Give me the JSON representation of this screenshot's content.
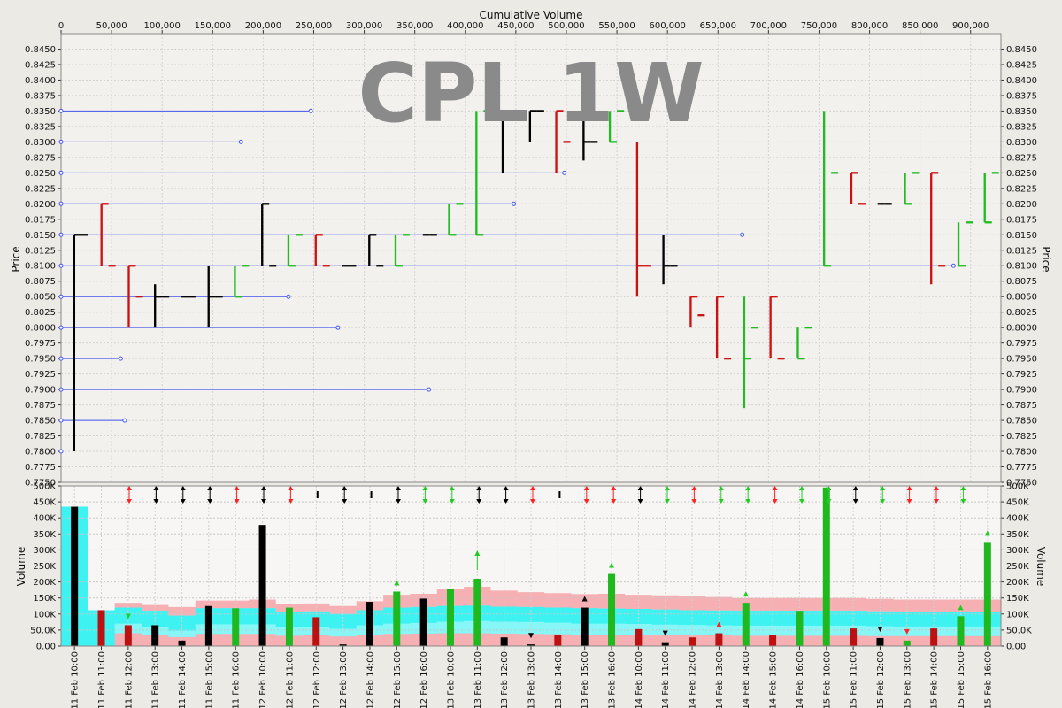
{
  "chart_data": [
    {
      "type": "bar",
      "subtype": "equivolume",
      "watermark": "CPL 1W",
      "xlabel": "Cumulative Volume",
      "ylabel": "Price",
      "xlim": [
        0,
        930000
      ],
      "ylim": [
        0.775,
        0.8475
      ],
      "x_ticks": [
        0,
        50000,
        100000,
        150000,
        200000,
        250000,
        300000,
        350000,
        400000,
        450000,
        500000,
        550000,
        600000,
        650000,
        700000,
        750000,
        800000,
        850000,
        900000
      ],
      "x_tick_labels": [
        "0",
        "50,000",
        "100,000",
        "150,000",
        "200,000",
        "250,000",
        "300,000",
        "350,000",
        "400,000",
        "450,000",
        "500,000",
        "550,000",
        "600,000",
        "650,000",
        "700,000",
        "750,000",
        "800,000",
        "850,000",
        "900,000"
      ],
      "y_ticks": [
        0.775,
        0.7775,
        0.78,
        0.7825,
        0.785,
        0.7875,
        0.79,
        0.7925,
        0.795,
        0.7975,
        0.8,
        0.8025,
        0.805,
        0.8075,
        0.81,
        0.8125,
        0.815,
        0.8175,
        0.82,
        0.8225,
        0.825,
        0.8275,
        0.83,
        0.8325,
        0.835,
        0.8375,
        0.84,
        0.8425,
        0.845
      ],
      "y_tick_labels": [
        "0.7750",
        "0.7775",
        "0.7800",
        "0.7825",
        "0.7850",
        "0.7875",
        "0.7900",
        "0.7925",
        "0.7950",
        "0.7975",
        "0.8000",
        "0.8025",
        "0.8050",
        "0.8075",
        "0.8100",
        "0.8125",
        "0.8150",
        "0.8175",
        "0.8200",
        "0.8225",
        "0.8250",
        "0.8275",
        "0.8300",
        "0.8325",
        "0.8350",
        "0.8375",
        "0.8400",
        "0.8425",
        "0.8450"
      ],
      "grid": true,
      "colors": {
        "up": "#22bb22",
        "down": "#cc1111",
        "neutral": "#000000",
        "volume_profile": "#4455ee"
      },
      "volume_at_price": [
        {
          "price": 0.835,
          "volume": 247000
        },
        {
          "price": 0.83,
          "volume": 178000
        },
        {
          "price": 0.825,
          "volume": 498000
        },
        {
          "price": 0.82,
          "volume": 448000
        },
        {
          "price": 0.815,
          "volume": 674000
        },
        {
          "price": 0.81,
          "volume": 883000
        },
        {
          "price": 0.805,
          "volume": 225000
        },
        {
          "price": 0.8,
          "volume": 274000
        },
        {
          "price": 0.795,
          "volume": 59000
        },
        {
          "price": 0.79,
          "volume": 364000
        },
        {
          "price": 0.785,
          "volume": 63000
        },
        {
          "price": 0.78,
          "volume": 0
        }
      ],
      "bars": [
        {
          "x0": 13000,
          "x1": 27000,
          "high": 0.815,
          "low": 0.78,
          "open": 0.815,
          "close": 0.815,
          "dir": "neutral"
        },
        {
          "x0": 40000,
          "x1": 54000,
          "high": 0.82,
          "low": 0.81,
          "open": 0.82,
          "close": 0.81,
          "dir": "down"
        },
        {
          "x0": 67000,
          "x1": 81000,
          "high": 0.81,
          "low": 0.8,
          "open": 0.81,
          "close": 0.805,
          "dir": "down"
        },
        {
          "x0": 93000,
          "x1": 107000,
          "high": 0.807,
          "low": 0.8,
          "open": 0.805,
          "close": 0.805,
          "dir": "neutral"
        },
        {
          "x0": 119000,
          "x1": 133000,
          "high": 0.805,
          "low": 0.805,
          "open": 0.805,
          "close": 0.805,
          "dir": "neutral"
        },
        {
          "x0": 146000,
          "x1": 160000,
          "high": 0.81,
          "low": 0.8,
          "open": 0.805,
          "close": 0.805,
          "dir": "neutral"
        },
        {
          "x0": 172000,
          "x1": 186000,
          "high": 0.81,
          "low": 0.805,
          "open": 0.805,
          "close": 0.81,
          "dir": "up"
        },
        {
          "x0": 199000,
          "x1": 213000,
          "high": 0.82,
          "low": 0.81,
          "open": 0.82,
          "close": 0.81,
          "dir": "neutral"
        },
        {
          "x0": 225000,
          "x1": 239000,
          "high": 0.815,
          "low": 0.81,
          "open": 0.81,
          "close": 0.815,
          "dir": "up"
        },
        {
          "x0": 252000,
          "x1": 266000,
          "high": 0.815,
          "low": 0.81,
          "open": 0.815,
          "close": 0.81,
          "dir": "down"
        },
        {
          "x0": 278000,
          "x1": 292000,
          "high": 0.81,
          "low": 0.81,
          "open": 0.81,
          "close": 0.81,
          "dir": "neutral"
        },
        {
          "x0": 305000,
          "x1": 319000,
          "high": 0.815,
          "low": 0.81,
          "open": 0.815,
          "close": 0.81,
          "dir": "neutral"
        },
        {
          "x0": 331000,
          "x1": 345000,
          "high": 0.815,
          "low": 0.81,
          "open": 0.81,
          "close": 0.815,
          "dir": "up"
        },
        {
          "x0": 358000,
          "x1": 372000,
          "high": 0.815,
          "low": 0.815,
          "open": 0.815,
          "close": 0.815,
          "dir": "neutral"
        },
        {
          "x0": 384000,
          "x1": 398000,
          "high": 0.82,
          "low": 0.815,
          "open": 0.815,
          "close": 0.82,
          "dir": "up"
        },
        {
          "x0": 411000,
          "x1": 425000,
          "high": 0.835,
          "low": 0.815,
          "open": 0.815,
          "close": 0.835,
          "dir": "up"
        },
        {
          "x0": 437000,
          "x1": 451000,
          "high": 0.835,
          "low": 0.825,
          "open": 0.835,
          "close": 0.835,
          "dir": "neutral"
        },
        {
          "x0": 464000,
          "x1": 478000,
          "high": 0.835,
          "low": 0.83,
          "open": 0.835,
          "close": 0.835,
          "dir": "neutral"
        },
        {
          "x0": 490000,
          "x1": 504000,
          "high": 0.835,
          "low": 0.825,
          "open": 0.835,
          "close": 0.83,
          "dir": "down"
        },
        {
          "x0": 517000,
          "x1": 531000,
          "high": 0.835,
          "low": 0.827,
          "open": 0.83,
          "close": 0.83,
          "dir": "neutral"
        },
        {
          "x0": 543000,
          "x1": 557000,
          "high": 0.835,
          "low": 0.83,
          "open": 0.83,
          "close": 0.835,
          "dir": "up"
        },
        {
          "x0": 570000,
          "x1": 584000,
          "high": 0.83,
          "low": 0.805,
          "open": 0.81,
          "close": 0.81,
          "dir": "down"
        },
        {
          "x0": 596000,
          "x1": 610000,
          "high": 0.815,
          "low": 0.807,
          "open": 0.81,
          "close": 0.81,
          "dir": "neutral"
        },
        {
          "x0": 623000,
          "x1": 637000,
          "high": 0.805,
          "low": 0.8,
          "open": 0.805,
          "close": 0.802,
          "dir": "down"
        },
        {
          "x0": 649000,
          "x1": 663000,
          "high": 0.805,
          "low": 0.795,
          "open": 0.805,
          "close": 0.795,
          "dir": "down"
        },
        {
          "x0": 676000,
          "x1": 690000,
          "high": 0.805,
          "low": 0.787,
          "open": 0.795,
          "close": 0.8,
          "dir": "up"
        },
        {
          "x0": 702000,
          "x1": 716000,
          "high": 0.805,
          "low": 0.795,
          "open": 0.805,
          "close": 0.795,
          "dir": "down"
        },
        {
          "x0": 729000,
          "x1": 743000,
          "high": 0.8,
          "low": 0.795,
          "open": 0.795,
          "close": 0.8,
          "dir": "up"
        },
        {
          "x0": 755000,
          "x1": 769000,
          "high": 0.835,
          "low": 0.81,
          "open": 0.81,
          "close": 0.825,
          "dir": "up"
        },
        {
          "x0": 782000,
          "x1": 796000,
          "high": 0.825,
          "low": 0.82,
          "open": 0.825,
          "close": 0.82,
          "dir": "down"
        },
        {
          "x0": 808000,
          "x1": 822000,
          "high": 0.82,
          "low": 0.82,
          "open": 0.82,
          "close": 0.82,
          "dir": "neutral"
        },
        {
          "x0": 835000,
          "x1": 849000,
          "high": 0.825,
          "low": 0.82,
          "open": 0.82,
          "close": 0.825,
          "dir": "up"
        },
        {
          "x0": 861000,
          "x1": 875000,
          "high": 0.825,
          "low": 0.807,
          "open": 0.825,
          "close": 0.81,
          "dir": "down"
        },
        {
          "x0": 888000,
          "x1": 902000,
          "high": 0.817,
          "low": 0.81,
          "open": 0.81,
          "close": 0.817,
          "dir": "up"
        },
        {
          "x0": 914000,
          "x1": 928000,
          "high": 0.825,
          "low": 0.817,
          "open": 0.817,
          "close": 0.825,
          "dir": "up"
        }
      ]
    },
    {
      "type": "bar",
      "subtype": "volume",
      "ylabel": "Volume",
      "ylim": [
        0,
        500000
      ],
      "y_ticks": [
        0,
        50000,
        100000,
        150000,
        200000,
        250000,
        300000,
        350000,
        400000,
        450000,
        500000
      ],
      "y_tick_labels": [
        "0.00",
        "50.0K",
        "100K",
        "150K",
        "200K",
        "250K",
        "300K",
        "350K",
        "400K",
        "450K",
        "500K"
      ],
      "categories": [
        "11 Feb 10:00",
        "11 Feb 11:00",
        "11 Feb 12:00",
        "11 Feb 13:00",
        "11 Feb 14:00",
        "11 Feb 15:00",
        "11 Feb 16:00",
        "12 Feb 10:00",
        "12 Feb 11:00",
        "12 Feb 12:00",
        "12 Feb 13:00",
        "12 Feb 14:00",
        "12 Feb 15:00",
        "12 Feb 16:00",
        "13 Feb 10:00",
        "13 Feb 11:00",
        "13 Feb 12:00",
        "13 Feb 13:00",
        "13 Feb 14:00",
        "13 Feb 15:00",
        "13 Feb 16:00",
        "14 Feb 10:00",
        "14 Feb 11:00",
        "14 Feb 12:00",
        "14 Feb 13:00",
        "14 Feb 14:00",
        "14 Feb 15:00",
        "14 Feb 16:00",
        "15 Feb 10:00",
        "15 Feb 11:00",
        "15 Feb 12:00",
        "15 Feb 13:00",
        "15 Feb 14:00",
        "15 Feb 15:00",
        "15 Feb 16:00"
      ],
      "values": [
        435000,
        112000,
        65000,
        65000,
        17000,
        125000,
        118000,
        378000,
        120000,
        90000,
        5000,
        138000,
        170000,
        148000,
        178000,
        210000,
        27000,
        5000,
        35000,
        120000,
        225000,
        53000,
        12000,
        27000,
        40000,
        135000,
        35000,
        110000,
        495000,
        55000,
        25000,
        17000,
        55000,
        93000,
        325000
      ],
      "dir": [
        "neutral",
        "down",
        "down",
        "neutral",
        "neutral",
        "neutral",
        "up",
        "neutral",
        "up",
        "down",
        "neutral",
        "neutral",
        "up",
        "neutral",
        "up",
        "up",
        "neutral",
        "neutral",
        "down",
        "neutral",
        "up",
        "down",
        "neutral",
        "down",
        "down",
        "up",
        "down",
        "up",
        "up",
        "down",
        "neutral",
        "up",
        "down",
        "up",
        "up"
      ],
      "volume_band": {
        "upper": [
          435000,
          112000,
          135000,
          128000,
          122000,
          142000,
          142000,
          145000,
          130000,
          133000,
          125000,
          140000,
          160000,
          163000,
          178000,
          185000,
          173000,
          168000,
          165000,
          162000,
          163000,
          160000,
          158000,
          155000,
          153000,
          150000,
          150000,
          150000,
          150000,
          150000,
          147000,
          145000,
          145000,
          145000,
          145000
        ],
        "mid_high": [
          435000,
          112000,
          120000,
          110000,
          95000,
          118000,
          118000,
          118000,
          105000,
          108000,
          100000,
          112000,
          120000,
          122000,
          125000,
          126000,
          123000,
          122000,
          120000,
          118000,
          117000,
          116000,
          114000,
          112000,
          111000,
          110000,
          110000,
          110000,
          110000,
          110000,
          108000,
          107000,
          107000,
          107000,
          107000
        ],
        "mid_low": [
          0,
          0,
          70000,
          60000,
          48000,
          68000,
          68000,
          68000,
          58000,
          60000,
          54000,
          65000,
          70000,
          72000,
          76000,
          78000,
          76000,
          75000,
          73000,
          70000,
          70000,
          69000,
          67000,
          66000,
          65000,
          64000,
          64000,
          64000,
          64000,
          64000,
          62000,
          61000,
          61000,
          61000,
          61000
        ],
        "lower": [
          0,
          0,
          40000,
          35000,
          28000,
          38000,
          38000,
          38000,
          32000,
          34000,
          30000,
          36000,
          38000,
          39000,
          40000,
          40000,
          39000,
          38000,
          37000,
          36000,
          36000,
          35000,
          34000,
          33000,
          33000,
          32000,
          32000,
          32000,
          32000,
          32000,
          31000,
          31000,
          31000,
          31000,
          31000
        ]
      },
      "band_colors": {
        "outer": "#f6b0b3",
        "inner": "#3ff2f2"
      },
      "change_markers": [
        {
          "symbol": "up-down",
          "color": "#ff2222"
        },
        {
          "symbol": "up-down",
          "color": "#000000"
        },
        {
          "symbol": "up-down",
          "color": "#000000"
        },
        {
          "symbol": "up-down",
          "color": "#000000"
        },
        {
          "symbol": "up-down",
          "color": "#ff2222"
        },
        {
          "symbol": "up-down",
          "color": "#000000"
        },
        {
          "symbol": "up-down",
          "color": "#ff2222"
        },
        {
          "symbol": "dash",
          "color": "#000000"
        },
        {
          "symbol": "up-down",
          "color": "#000000"
        },
        {
          "symbol": "dash",
          "color": "#000000"
        },
        {
          "symbol": "up-down",
          "color": "#000000"
        },
        {
          "symbol": "up-down",
          "color": "#22cc22"
        },
        {
          "symbol": "up-down",
          "color": "#22cc22"
        },
        {
          "symbol": "up-down",
          "color": "#000000"
        },
        {
          "symbol": "up-down",
          "color": "#000000"
        },
        {
          "symbol": "up-down",
          "color": "#ff2222"
        },
        {
          "symbol": "dash",
          "color": "#000000"
        },
        {
          "symbol": "up-down",
          "color": "#ff2222"
        },
        {
          "symbol": "up-down",
          "color": "#ff2222"
        },
        {
          "symbol": "up-down",
          "color": "#000000"
        },
        {
          "symbol": "up-down",
          "color": "#22cc22"
        },
        {
          "symbol": "up-down",
          "color": "#ff2222"
        },
        {
          "symbol": "up-down",
          "color": "#22cc22"
        },
        {
          "symbol": "up-down",
          "color": "#22cc22"
        },
        {
          "symbol": "up-down",
          "color": "#ff2222"
        },
        {
          "symbol": "up-down",
          "color": "#22cc22"
        },
        {
          "symbol": "up-down",
          "color": "#22cc22"
        },
        {
          "symbol": "up-down",
          "color": "#000000"
        },
        {
          "symbol": "up-down",
          "color": "#22cc22"
        },
        {
          "symbol": "up-down",
          "color": "#ff2222"
        },
        {
          "symbol": "up-down",
          "color": "#ff2222"
        },
        {
          "symbol": "up-down",
          "color": "#22cc22"
        }
      ],
      "bar_annotations": [
        {
          "index": 2,
          "symbol": "down",
          "color": "#22cc22"
        },
        {
          "index": 12,
          "symbol": "up",
          "color": "#22cc22"
        },
        {
          "index": 15,
          "symbol": "up-arrow",
          "color": "#22cc22"
        },
        {
          "index": 17,
          "symbol": "down",
          "color": "#000000"
        },
        {
          "index": 19,
          "symbol": "up",
          "color": "#000000"
        },
        {
          "index": 20,
          "symbol": "up",
          "color": "#22cc22"
        },
        {
          "index": 22,
          "symbol": "down",
          "color": "#000000"
        },
        {
          "index": 24,
          "symbol": "up",
          "color": "#ff2222"
        },
        {
          "index": 25,
          "symbol": "up",
          "color": "#22cc22"
        },
        {
          "index": 30,
          "symbol": "down",
          "color": "#000000"
        },
        {
          "index": 31,
          "symbol": "down",
          "color": "#ff2222"
        },
        {
          "index": 33,
          "symbol": "up",
          "color": "#22cc22"
        },
        {
          "index": 34,
          "symbol": "up",
          "color": "#22cc22"
        }
      ]
    }
  ]
}
